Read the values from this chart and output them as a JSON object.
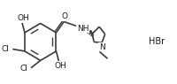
{
  "bg_color": "#ffffff",
  "line_color": "#3a3a3a",
  "text_color": "#1a1a1a",
  "lw": 1.2,
  "fontsize": 6.5,
  "figsize": [
    2.0,
    0.95
  ],
  "dpi": 100,
  "xlim": [
    0,
    10
  ],
  "ylim": [
    0,
    4.75
  ]
}
